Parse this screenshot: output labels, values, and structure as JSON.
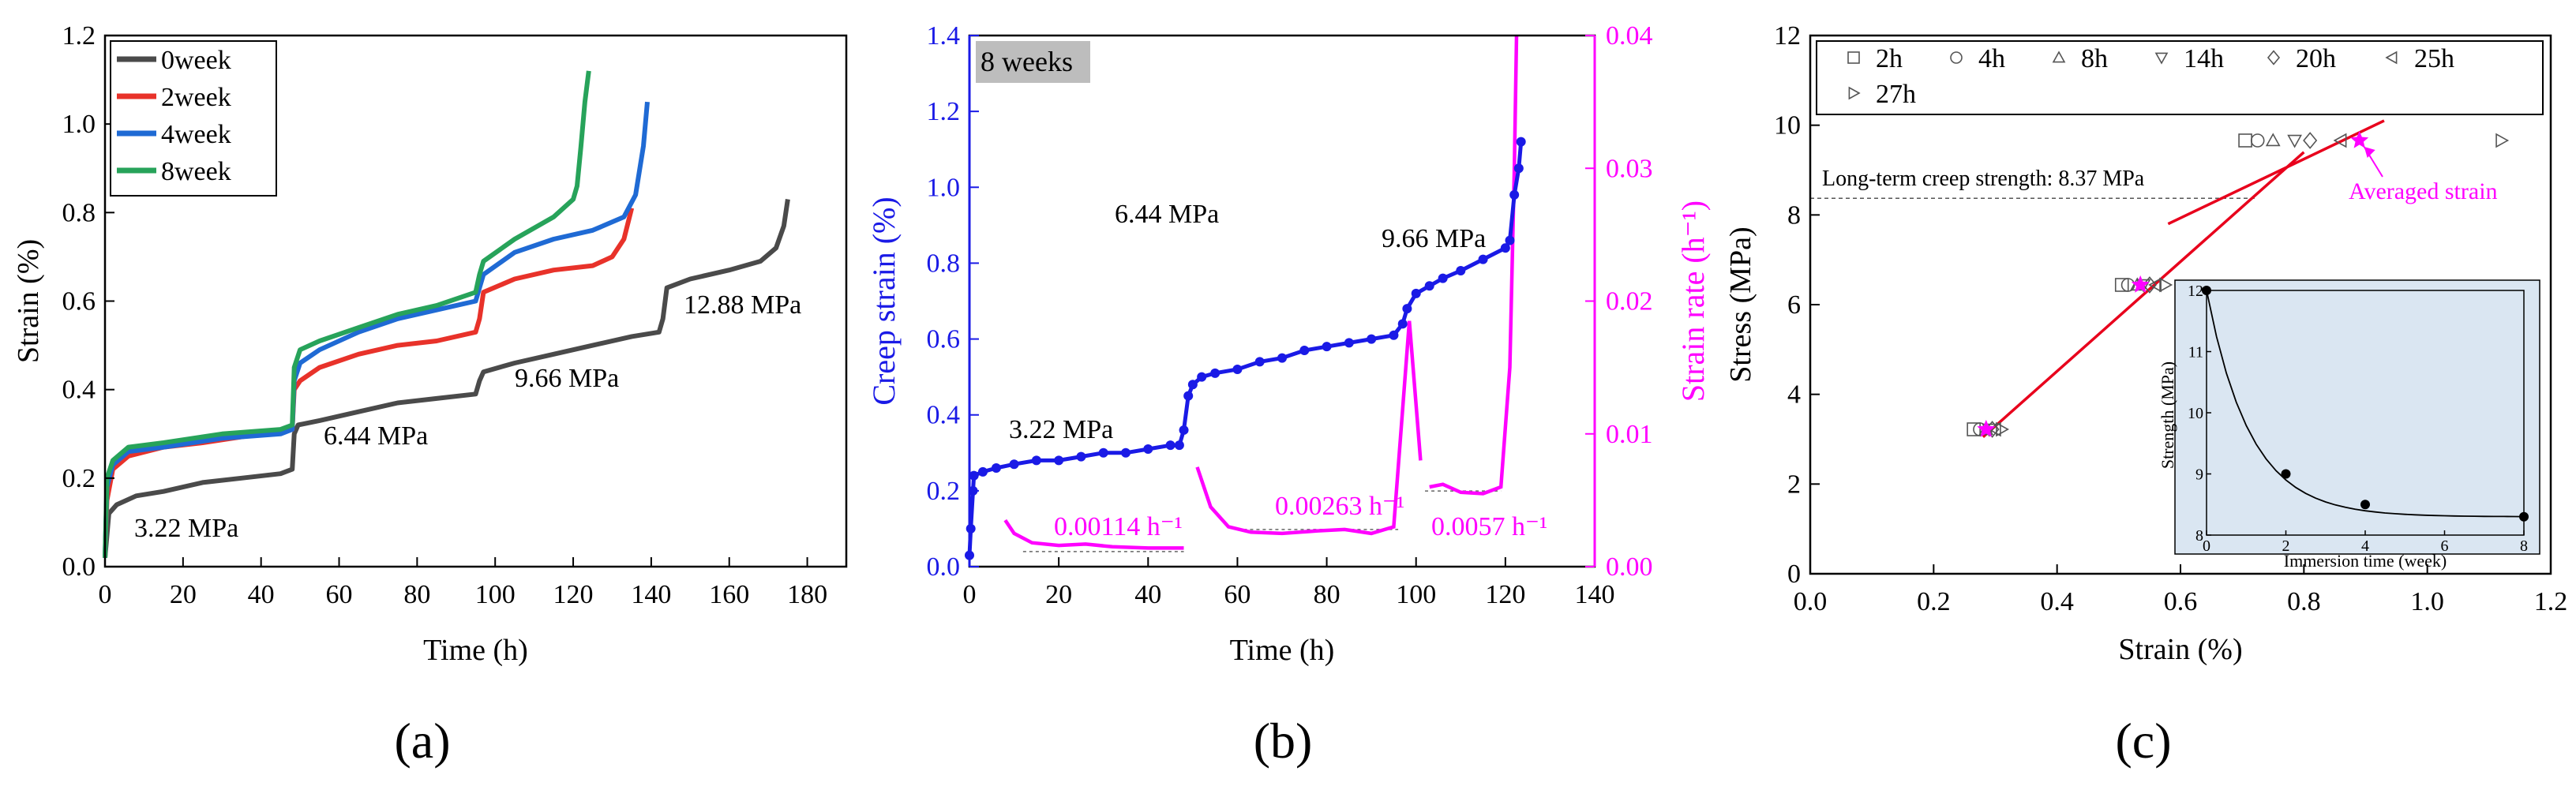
{
  "chart_data": [
    {
      "panel": "(a)",
      "type": "line",
      "xlabel": "Time (h)",
      "ylabel": "Strain (%)",
      "xlim": [
        0,
        190
      ],
      "ylim": [
        0,
        1.2
      ],
      "xticks": [
        "0",
        "20",
        "40",
        "60",
        "80",
        "100",
        "120",
        "140",
        "160",
        "180"
      ],
      "yticks": [
        "0.0",
        "0.2",
        "0.4",
        "0.6",
        "0.8",
        "1.0",
        "1.2"
      ],
      "legend_position": "top-left",
      "series": [
        {
          "name": "0week",
          "color": "#4a4a4a",
          "points": [
            [
              0,
              0.02
            ],
            [
              1,
              0.12
            ],
            [
              3,
              0.14
            ],
            [
              8,
              0.16
            ],
            [
              15,
              0.17
            ],
            [
              25,
              0.19
            ],
            [
              35,
              0.2
            ],
            [
              45,
              0.21
            ],
            [
              48,
              0.22
            ],
            [
              48.5,
              0.3
            ],
            [
              49.5,
              0.32
            ],
            [
              55,
              0.33
            ],
            [
              65,
              0.35
            ],
            [
              75,
              0.37
            ],
            [
              85,
              0.38
            ],
            [
              95,
              0.39
            ],
            [
              96,
              0.42
            ],
            [
              97,
              0.44
            ],
            [
              105,
              0.46
            ],
            [
              115,
              0.48
            ],
            [
              125,
              0.5
            ],
            [
              135,
              0.52
            ],
            [
              142,
              0.53
            ],
            [
              143,
              0.56
            ],
            [
              144,
              0.63
            ],
            [
              150,
              0.65
            ],
            [
              160,
              0.67
            ],
            [
              168,
              0.69
            ],
            [
              172,
              0.72
            ],
            [
              174,
              0.77
            ],
            [
              175,
              0.83
            ]
          ]
        },
        {
          "name": "2week",
          "color": "#e8322a",
          "points": [
            [
              0,
              0.02
            ],
            [
              0.5,
              0.15
            ],
            [
              2,
              0.22
            ],
            [
              6,
              0.25
            ],
            [
              15,
              0.27
            ],
            [
              25,
              0.28
            ],
            [
              40,
              0.3
            ],
            [
              48,
              0.31
            ],
            [
              48.5,
              0.4
            ],
            [
              50,
              0.42
            ],
            [
              55,
              0.45
            ],
            [
              65,
              0.48
            ],
            [
              75,
              0.5
            ],
            [
              85,
              0.51
            ],
            [
              95,
              0.53
            ],
            [
              96,
              0.56
            ],
            [
              97,
              0.62
            ],
            [
              105,
              0.65
            ],
            [
              115,
              0.67
            ],
            [
              125,
              0.68
            ],
            [
              130,
              0.7
            ],
            [
              133,
              0.74
            ],
            [
              135,
              0.81
            ]
          ]
        },
        {
          "name": "4week",
          "color": "#1f6ad4",
          "points": [
            [
              0,
              0.02
            ],
            [
              0.5,
              0.18
            ],
            [
              2,
              0.23
            ],
            [
              6,
              0.26
            ],
            [
              15,
              0.27
            ],
            [
              30,
              0.29
            ],
            [
              45,
              0.3
            ],
            [
              48,
              0.31
            ],
            [
              48.5,
              0.42
            ],
            [
              50,
              0.46
            ],
            [
              55,
              0.49
            ],
            [
              65,
              0.53
            ],
            [
              75,
              0.56
            ],
            [
              85,
              0.58
            ],
            [
              95,
              0.6
            ],
            [
              96,
              0.63
            ],
            [
              97,
              0.66
            ],
            [
              105,
              0.71
            ],
            [
              115,
              0.74
            ],
            [
              125,
              0.76
            ],
            [
              133,
              0.79
            ],
            [
              136,
              0.84
            ],
            [
              138,
              0.95
            ],
            [
              139,
              1.05
            ]
          ]
        },
        {
          "name": "8week",
          "color": "#27a35a",
          "points": [
            [
              0,
              0.02
            ],
            [
              0.5,
              0.2
            ],
            [
              2,
              0.24
            ],
            [
              6,
              0.27
            ],
            [
              15,
              0.28
            ],
            [
              30,
              0.3
            ],
            [
              45,
              0.31
            ],
            [
              48,
              0.32
            ],
            [
              48.5,
              0.45
            ],
            [
              50,
              0.49
            ],
            [
              55,
              0.51
            ],
            [
              65,
              0.54
            ],
            [
              75,
              0.57
            ],
            [
              85,
              0.59
            ],
            [
              95,
              0.62
            ],
            [
              96,
              0.66
            ],
            [
              97,
              0.69
            ],
            [
              105,
              0.74
            ],
            [
              115,
              0.79
            ],
            [
              120,
              0.83
            ],
            [
              121,
              0.86
            ],
            [
              122,
              0.95
            ],
            [
              123,
              1.05
            ],
            [
              124,
              1.12
            ]
          ]
        }
      ],
      "annotations": [
        "3.22 MPa",
        "6.44 MPa",
        "9.66 MPa",
        "12.88 MPa"
      ]
    },
    {
      "panel": "(b)",
      "type": "line",
      "badge": "8 weeks",
      "xlabel": "Time (h)",
      "ylabel_left": "Creep strain (%)",
      "ylabel_right": "Strain rate (h⁻¹)",
      "xlim": [
        0,
        140
      ],
      "ylim_left": [
        0,
        1.4
      ],
      "ylim_right": [
        0,
        0.04
      ],
      "xticks": [
        "0",
        "20",
        "40",
        "60",
        "80",
        "100",
        "120",
        "140"
      ],
      "yticks_left": [
        "0.0",
        "0.2",
        "0.4",
        "0.6",
        "0.8",
        "1.0",
        "1.2",
        "1.4"
      ],
      "yticks_right": [
        "0.00",
        "0.01",
        "0.02",
        "0.03",
        "0.04"
      ],
      "series": [
        {
          "name": "Creep strain",
          "axis": "left",
          "color": "#1a1ae6",
          "points": [
            [
              0,
              0.03
            ],
            [
              0.3,
              0.1
            ],
            [
              0.8,
              0.2
            ],
            [
              1,
              0.24
            ],
            [
              3,
              0.25
            ],
            [
              6,
              0.26
            ],
            [
              10,
              0.27
            ],
            [
              15,
              0.28
            ],
            [
              20,
              0.28
            ],
            [
              25,
              0.29
            ],
            [
              30,
              0.3
            ],
            [
              35,
              0.3
            ],
            [
              40,
              0.31
            ],
            [
              45,
              0.32
            ],
            [
              47,
              0.32
            ],
            [
              48,
              0.36
            ],
            [
              49,
              0.45
            ],
            [
              50,
              0.48
            ],
            [
              52,
              0.5
            ],
            [
              55,
              0.51
            ],
            [
              60,
              0.52
            ],
            [
              65,
              0.54
            ],
            [
              70,
              0.55
            ],
            [
              75,
              0.57
            ],
            [
              80,
              0.58
            ],
            [
              85,
              0.59
            ],
            [
              90,
              0.6
            ],
            [
              95,
              0.61
            ],
            [
              97,
              0.64
            ],
            [
              98,
              0.68
            ],
            [
              100,
              0.72
            ],
            [
              103,
              0.74
            ],
            [
              106,
              0.76
            ],
            [
              110,
              0.78
            ],
            [
              115,
              0.81
            ],
            [
              120,
              0.84
            ],
            [
              121,
              0.86
            ],
            [
              122,
              0.98
            ],
            [
              123,
              1.05
            ],
            [
              123.5,
              1.12
            ]
          ]
        },
        {
          "name": "Strain rate",
          "axis": "right",
          "color": "#ff00ff",
          "points": [
            [
              8,
              0.0035
            ],
            [
              10,
              0.0025
            ],
            [
              14,
              0.0018
            ],
            [
              20,
              0.0016
            ],
            [
              26,
              0.0017
            ],
            [
              32,
              0.0015
            ],
            [
              40,
              0.0014
            ],
            [
              48,
              0.0014
            ],
            [
              51,
              0.0075
            ],
            [
              54,
              0.0045
            ],
            [
              58,
              0.003
            ],
            [
              63,
              0.0026
            ],
            [
              70,
              0.0025
            ],
            [
              78,
              0.0027
            ],
            [
              84,
              0.0028
            ],
            [
              90,
              0.0025
            ],
            [
              95,
              0.003
            ],
            [
              98.5,
              0.0185
            ],
            [
              101,
              0.008
            ],
            [
              103,
              0.006
            ],
            [
              106,
              0.0062
            ],
            [
              110,
              0.0056
            ],
            [
              115,
              0.0055
            ],
            [
              119,
              0.006
            ],
            [
              121,
              0.015
            ],
            [
              122,
              0.03
            ],
            [
              122.5,
              0.04
            ]
          ]
        }
      ],
      "annotations": [
        "3.22 MPa",
        "6.44 MPa",
        "9.66 MPa",
        "0.00114 h⁻¹",
        "0.00263 h⁻¹",
        "0.0057 h⁻¹"
      ]
    },
    {
      "panel": "(c)",
      "type": "scatter",
      "xlabel": "Strain (%)",
      "ylabel": "Stress (MPa)",
      "xlim": [
        0,
        1.2
      ],
      "ylim": [
        0,
        12
      ],
      "xticks": [
        "0.0",
        "0.2",
        "0.4",
        "0.6",
        "0.8",
        "1.0",
        "1.2"
      ],
      "yticks": [
        "0",
        "2",
        "4",
        "6",
        "8",
        "10",
        "12"
      ],
      "legend_position": "top",
      "series": [
        {
          "name": "2h",
          "marker": "square",
          "points": [
            [
              0.265,
              3.22
            ],
            [
              0.505,
              6.44
            ],
            [
              0.705,
              9.66
            ]
          ]
        },
        {
          "name": "4h",
          "marker": "circle",
          "points": [
            [
              0.275,
              3.22
            ],
            [
              0.515,
              6.44
            ],
            [
              0.725,
              9.66
            ]
          ]
        },
        {
          "name": "8h",
          "marker": "triangle-up",
          "points": [
            [
              0.285,
              3.22
            ],
            [
              0.53,
              6.44
            ],
            [
              0.75,
              9.66
            ]
          ]
        },
        {
          "name": "14h",
          "marker": "triangle-down",
          "points": [
            [
              0.29,
              3.22
            ],
            [
              0.54,
              6.44
            ],
            [
              0.785,
              9.66
            ]
          ]
        },
        {
          "name": "20h",
          "marker": "diamond",
          "points": [
            [
              0.295,
              3.22
            ],
            [
              0.55,
              6.44
            ],
            [
              0.81,
              9.66
            ]
          ]
        },
        {
          "name": "25h",
          "marker": "triangle-left",
          "points": [
            [
              0.3,
              3.22
            ],
            [
              0.56,
              6.44
            ],
            [
              0.86,
              9.66
            ]
          ]
        },
        {
          "name": "27h",
          "marker": "triangle-right",
          "points": [
            [
              0.31,
              3.22
            ],
            [
              0.575,
              6.44
            ],
            [
              1.12,
              9.66
            ]
          ]
        }
      ],
      "averaged_strain": [
        [
          0.285,
          3.22
        ],
        [
          0.535,
          6.44
        ],
        [
          0.89,
          9.66
        ]
      ],
      "fit_lines": [
        [
          [
            0.28,
            3.05
          ],
          [
            0.8,
            9.4
          ]
        ],
        [
          [
            0.58,
            7.8
          ],
          [
            0.93,
            10.1
          ]
        ]
      ],
      "long_term_strength_line": 8.37,
      "annotations": [
        "Long-term creep strength: 8.37 MPa",
        "Averaged strain"
      ],
      "inset": {
        "xlabel": "Immersion time (week)",
        "ylabel": "Strength (MPa)",
        "xlim": [
          0,
          8
        ],
        "ylim": [
          8,
          12
        ],
        "xticks": [
          "0",
          "2",
          "4",
          "6",
          "8"
        ],
        "yticks": [
          "8",
          "9",
          "10",
          "11",
          "12"
        ],
        "points": [
          [
            0,
            12.0
          ],
          [
            2,
            9.0
          ],
          [
            4,
            8.5
          ],
          [
            8,
            8.3
          ]
        ]
      }
    }
  ],
  "panel_labels": [
    "(a)",
    "(b)",
    "(c)"
  ]
}
